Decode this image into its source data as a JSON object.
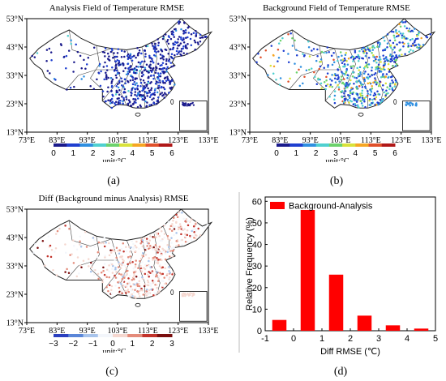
{
  "panels": [
    {
      "title": "Analysis Field of Temperature  RMSE",
      "label": "(a)",
      "lat_ticks": [
        "53°N",
        "43°N",
        "33°N",
        "23°N",
        "13°N"
      ],
      "lon_ticks": [
        "73°E",
        "83°E",
        "93°E",
        "103°E",
        "113°E",
        "123°E",
        "133°E"
      ],
      "colorbar_ticks": [
        "0",
        "1",
        "2",
        "3",
        "4",
        "5",
        "6"
      ],
      "unit": "unit:°C",
      "palette": "rmse"
    },
    {
      "title": "Background Field of Temperature  RMSE",
      "label": "(b)",
      "lat_ticks": [
        "53°N",
        "43°N",
        "33°N",
        "23°N",
        "13°N"
      ],
      "lon_ticks": [
        "73°E",
        "83°E",
        "93°E",
        "103°E",
        "113°E",
        "123°E",
        "133°E"
      ],
      "colorbar_ticks": [
        "0",
        "1",
        "2",
        "3",
        "4",
        "5",
        "6"
      ],
      "unit": "unit:°C",
      "palette": "rmse"
    },
    {
      "title": "Diff (Background minus Analysis)  RMSE",
      "label": "(c)",
      "lat_ticks": [
        "53°N",
        "43°N",
        "33°N",
        "23°N",
        "13°N"
      ],
      "lon_ticks": [
        "73°E",
        "83°E",
        "93°E",
        "103°E",
        "113°E",
        "123°E",
        "133°E"
      ],
      "colorbar_ticks": [
        "−3",
        "−2",
        "−1",
        "0",
        "1",
        "2",
        "3"
      ],
      "unit": "unit:°C",
      "palette": "diff"
    }
  ],
  "chart_data": {
    "type": "bar",
    "label": "(d)",
    "xlabel": "Diff RMSE (℃)",
    "ylabel": "Relative Frequency (%)",
    "x_ticks": [
      "-1",
      "0",
      "1",
      "2",
      "3",
      "4",
      "5"
    ],
    "y_ticks": [
      "0",
      "10",
      "20",
      "30",
      "40",
      "50",
      "60"
    ],
    "xlim": [
      -1,
      5
    ],
    "ylim": [
      0,
      62
    ],
    "series": [
      {
        "name": "Background-Analysis",
        "color": "#ff0000",
        "x": [
          -0.5,
          0.5,
          1.5,
          2.5,
          3.5,
          4.5
        ],
        "values": [
          5,
          56,
          26,
          7,
          2.5,
          1
        ]
      }
    ],
    "legend": "top-left"
  }
}
